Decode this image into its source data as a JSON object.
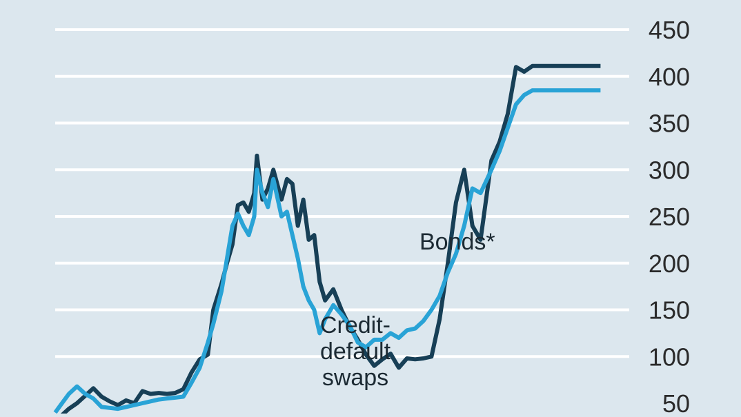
{
  "colors": {
    "background": "#dce7ee",
    "gridline": "#ffffff",
    "bonds": "#173f56",
    "cds": "#29a3d6",
    "text": "#2a2a2a"
  },
  "chart_data": {
    "type": "line",
    "title": "",
    "xlabel": "",
    "ylabel": "",
    "ylim": [
      50,
      450
    ],
    "yticks": [
      50,
      100,
      150,
      200,
      250,
      300,
      350,
      400,
      450
    ],
    "grid": true,
    "annotations": [
      {
        "series": "Bonds*",
        "lines": [
          "Bonds*"
        ]
      },
      {
        "series": "Credit-default swaps",
        "lines": [
          "Credit-",
          "default",
          "swaps"
        ]
      }
    ],
    "series": [
      {
        "name": "Bonds*",
        "color": "#173f56",
        "x": [
          0,
          2,
          5,
          8,
          11,
          14,
          17,
          20,
          23,
          26,
          29,
          32,
          35,
          38,
          41,
          44,
          47,
          50,
          53,
          56,
          58,
          61,
          63,
          65,
          67,
          69,
          71,
          73,
          74,
          76,
          78,
          80,
          83,
          85,
          87,
          89,
          91,
          93,
          95,
          97,
          99,
          102,
          105,
          108,
          111,
          114,
          117,
          120,
          123,
          126,
          129,
          132,
          135,
          138,
          141,
          144,
          147,
          150,
          153,
          156,
          160,
          163,
          166,
          169,
          172,
          175,
          178,
          181,
          184,
          186,
          188,
          190,
          192,
          194,
          196,
          198,
          200
        ],
        "values": [
          32,
          36,
          44,
          50,
          58,
          66,
          57,
          52,
          48,
          53,
          50,
          63,
          60,
          61,
          60,
          61,
          65,
          83,
          97,
          102,
          150,
          178,
          200,
          220,
          262,
          265,
          255,
          275,
          315,
          268,
          280,
          300,
          268,
          290,
          285,
          240,
          268,
          225,
          230,
          180,
          160,
          172,
          150,
          132,
          118,
          102,
          90,
          97,
          103,
          88,
          98,
          97,
          98,
          100,
          140,
          200,
          265,
          300,
          240,
          225,
          310,
          330,
          360,
          410,
          405,
          411,
          411,
          411,
          411,
          411,
          411,
          411,
          411,
          411,
          411,
          411,
          411
        ]
      },
      {
        "name": "Credit-default swaps",
        "color": "#29a3d6",
        "x": [
          0,
          2,
          5,
          8,
          11,
          14,
          17,
          20,
          23,
          26,
          29,
          32,
          35,
          38,
          41,
          44,
          47,
          50,
          53,
          56,
          58,
          61,
          63,
          65,
          67,
          69,
          71,
          73,
          74,
          76,
          78,
          80,
          83,
          85,
          87,
          89,
          91,
          93,
          95,
          97,
          99,
          102,
          105,
          108,
          111,
          114,
          117,
          120,
          123,
          126,
          129,
          132,
          135,
          138,
          141,
          144,
          147,
          150,
          153,
          156,
          160,
          163,
          166,
          169,
          172,
          175,
          178,
          181,
          184,
          186,
          188,
          190,
          192,
          194,
          196,
          198,
          200
        ],
        "values": [
          40,
          48,
          60,
          68,
          60,
          55,
          46,
          45,
          44,
          46,
          48,
          50,
          52,
          54,
          55,
          56,
          57,
          72,
          88,
          115,
          135,
          170,
          205,
          240,
          253,
          240,
          230,
          250,
          300,
          275,
          260,
          290,
          250,
          255,
          230,
          205,
          175,
          160,
          150,
          125,
          140,
          155,
          145,
          133,
          115,
          110,
          118,
          118,
          125,
          120,
          128,
          130,
          138,
          150,
          165,
          190,
          210,
          240,
          280,
          275,
          300,
          320,
          345,
          370,
          380,
          385,
          385,
          385,
          385,
          385,
          385,
          385,
          385,
          385,
          385,
          385,
          385
        ]
      }
    ]
  }
}
